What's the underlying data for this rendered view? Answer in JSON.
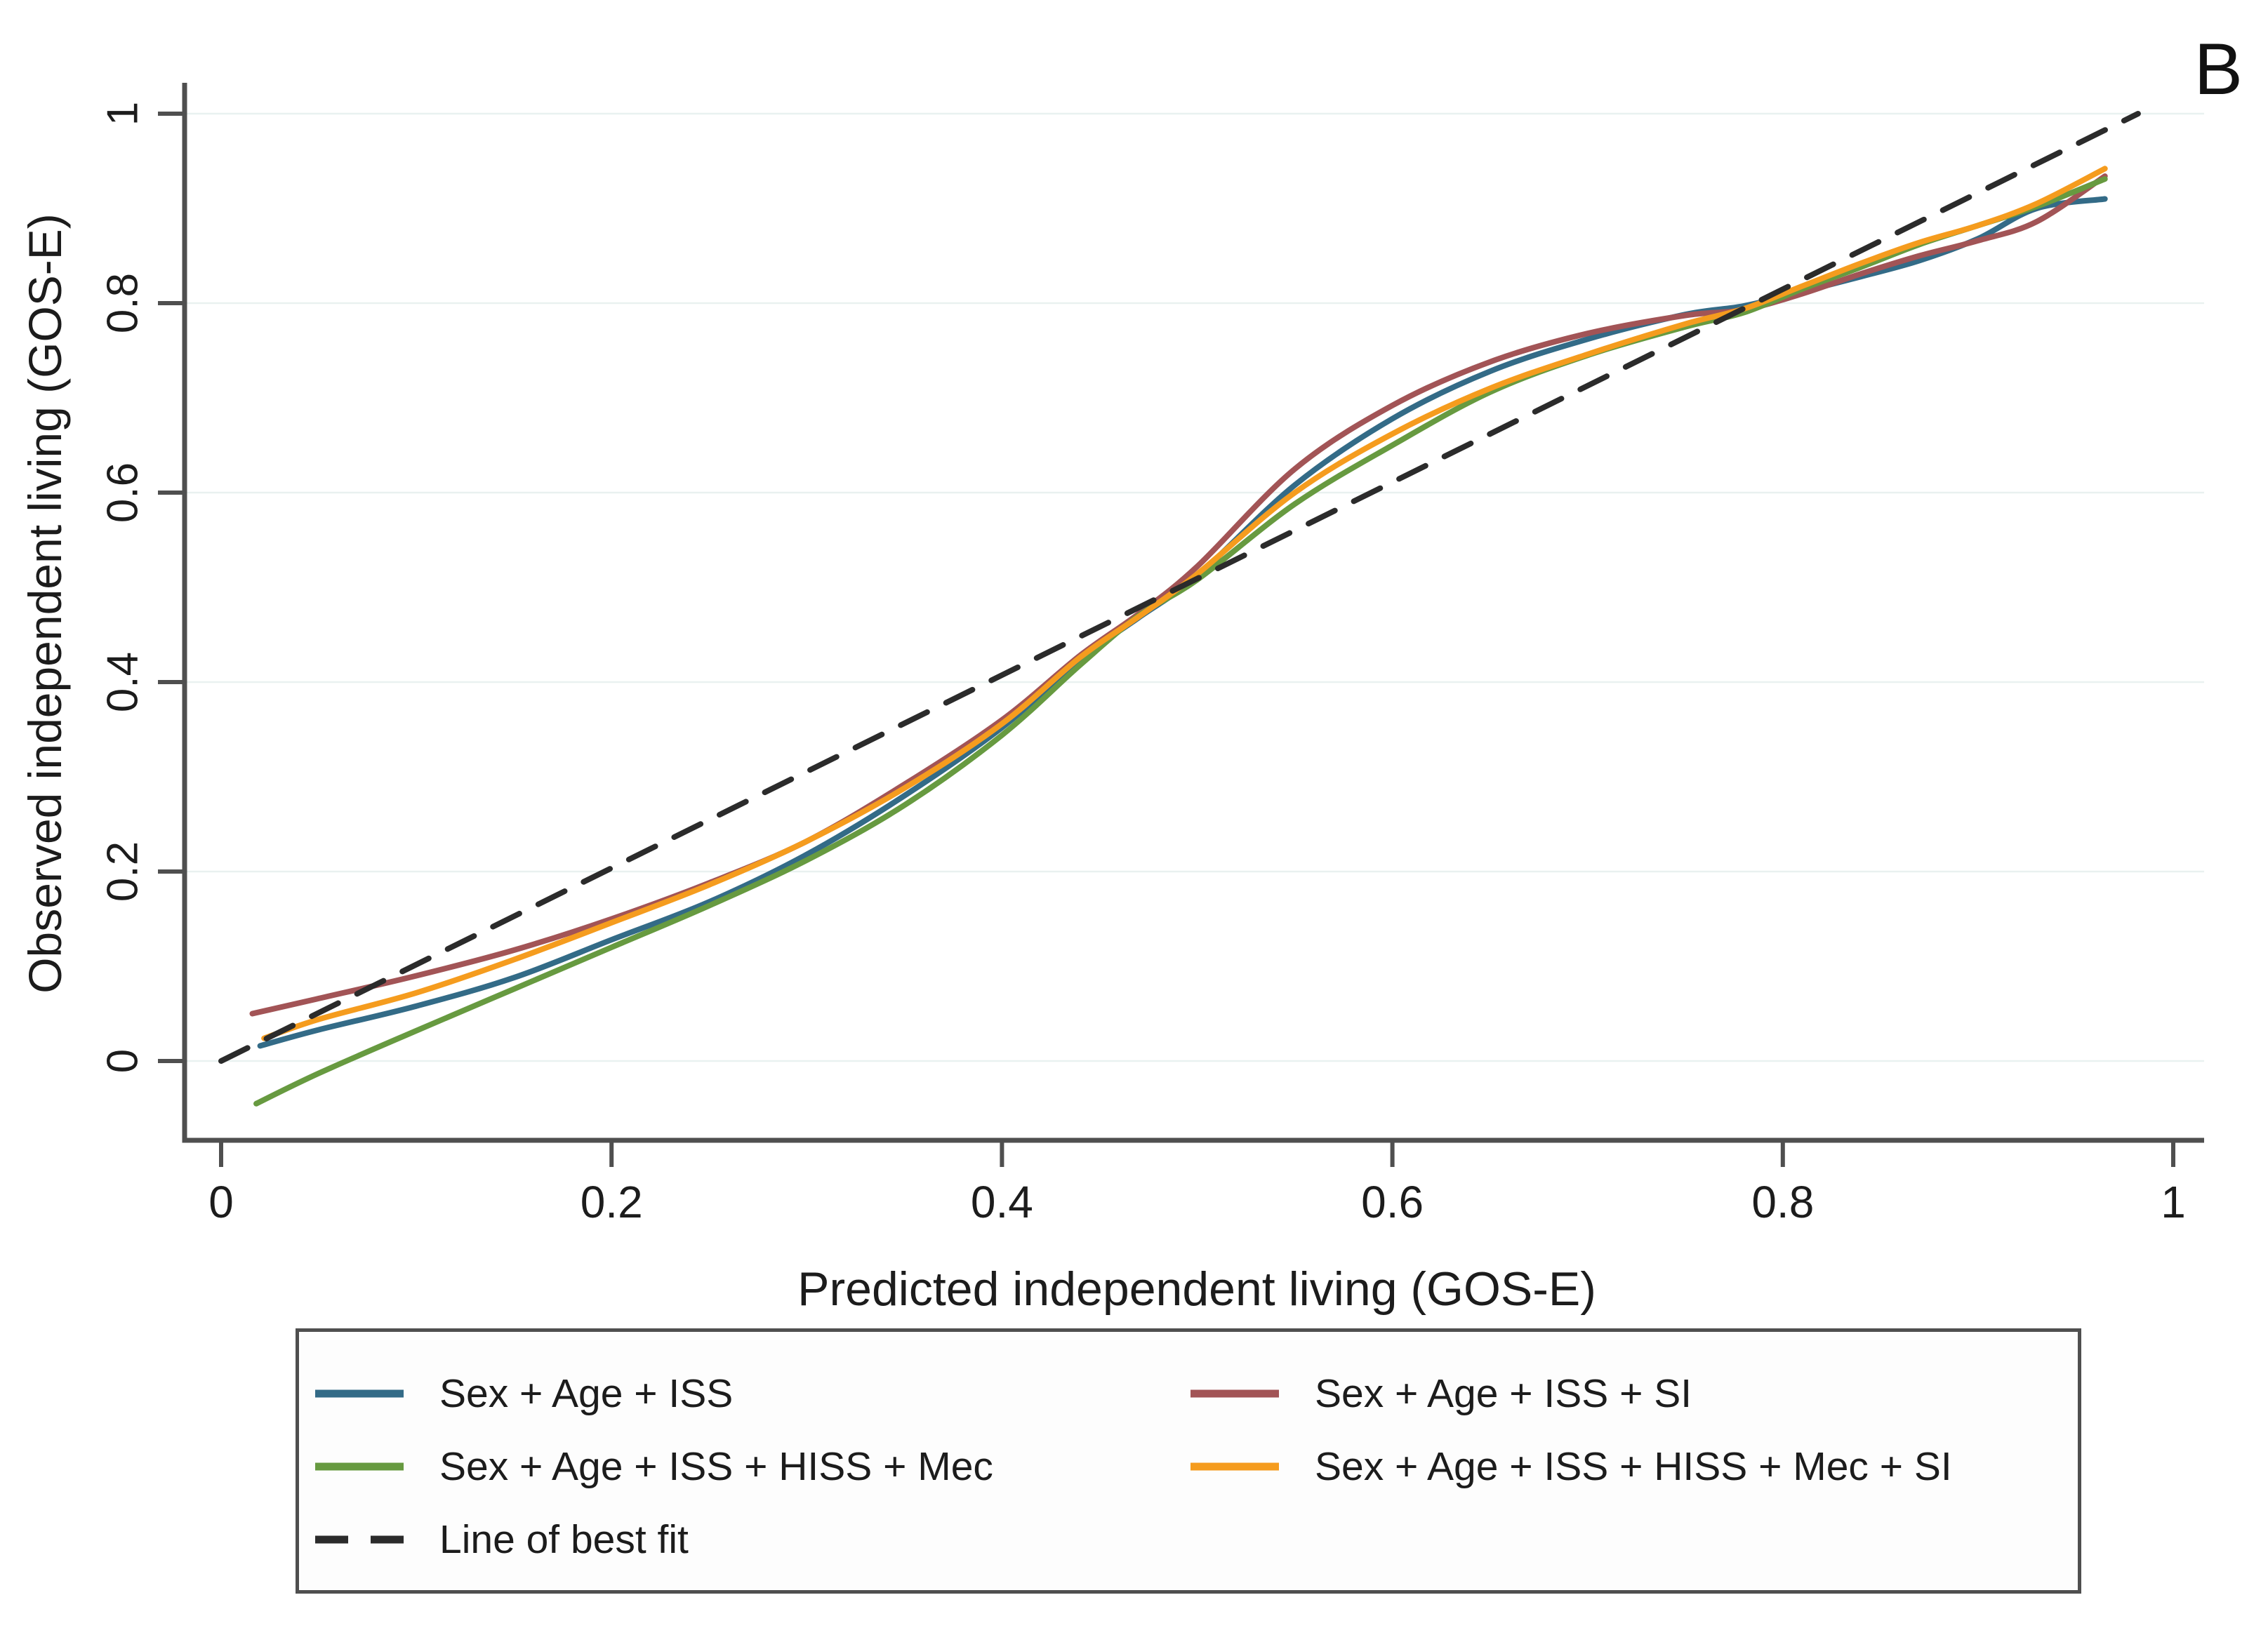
{
  "panel_label": "B",
  "colors": {
    "blue": "#336b87",
    "red": "#a25456",
    "green": "#679a40",
    "orange": "#f59c1e",
    "best_fit": "#2b2b2b",
    "axis": "#4f4f4f",
    "grid": "#e9f1f0",
    "text": "#1c1c1c"
  },
  "axes": {
    "x": {
      "title": "Predicted independent living (GOS-E)",
      "ticks": [
        0,
        0.2,
        0.4,
        0.6,
        0.8,
        1
      ],
      "tick_labels": [
        "0",
        "0.2",
        "0.4",
        "0.6",
        "0.8",
        "1"
      ],
      "range": [
        -0.02,
        1.02
      ]
    },
    "y": {
      "title": "Observed independent living (GOS-E)",
      "ticks": [
        0,
        0.2,
        0.4,
        0.6,
        0.8,
        1
      ],
      "tick_labels": [
        "0",
        "0.2",
        "0.4",
        "0.6",
        "0.8",
        "1"
      ],
      "range": [
        -0.084,
        1.03
      ]
    }
  },
  "chart_data": {
    "type": "line",
    "title": "",
    "xlabel": "Predicted independent living (GOS-E)",
    "ylabel": "Observed independent living (GOS-E)",
    "xlim": [
      -0.02,
      1.02
    ],
    "ylim": [
      -0.084,
      1.03
    ],
    "grid": "horizontal-only",
    "legend_position": "bottom-box",
    "series": [
      {
        "name": "Sex + Age + ISS",
        "color_key": "blue",
        "dash": false,
        "x": [
          0.02,
          0.05,
          0.1,
          0.15,
          0.2,
          0.25,
          0.3,
          0.35,
          0.4,
          0.44,
          0.47,
          0.5,
          0.55,
          0.6,
          0.65,
          0.7,
          0.75,
          0.78,
          0.81,
          0.84,
          0.87,
          0.9,
          0.93,
          0.965
        ],
        "y": [
          0.016,
          0.033,
          0.058,
          0.088,
          0.128,
          0.168,
          0.218,
          0.28,
          0.352,
          0.424,
          0.468,
          0.512,
          0.608,
          0.678,
          0.728,
          0.762,
          0.788,
          0.797,
          0.812,
          0.828,
          0.845,
          0.868,
          0.9,
          0.91
        ]
      },
      {
        "name": "Sex + Age + ISS + SI",
        "color_key": "red",
        "dash": false,
        "x": [
          0.016,
          0.05,
          0.1,
          0.15,
          0.2,
          0.25,
          0.3,
          0.35,
          0.4,
          0.44,
          0.47,
          0.5,
          0.55,
          0.6,
          0.65,
          0.7,
          0.75,
          0.78,
          0.81,
          0.84,
          0.87,
          0.9,
          0.93,
          0.965
        ],
        "y": [
          0.05,
          0.066,
          0.09,
          0.117,
          0.15,
          0.188,
          0.232,
          0.292,
          0.36,
          0.428,
          0.472,
          0.522,
          0.625,
          0.692,
          0.738,
          0.768,
          0.787,
          0.793,
          0.81,
          0.831,
          0.85,
          0.866,
          0.886,
          0.934
        ]
      },
      {
        "name": "Sex + Age + ISS + HISS + Mec",
        "color_key": "green",
        "dash": false,
        "x": [
          0.018,
          0.05,
          0.1,
          0.15,
          0.2,
          0.25,
          0.3,
          0.35,
          0.4,
          0.44,
          0.47,
          0.5,
          0.55,
          0.6,
          0.65,
          0.7,
          0.75,
          0.78,
          0.81,
          0.84,
          0.87,
          0.9,
          0.93,
          0.965
        ],
        "y": [
          -0.045,
          -0.013,
          0.032,
          0.076,
          0.12,
          0.164,
          0.212,
          0.27,
          0.344,
          0.418,
          0.47,
          0.508,
          0.588,
          0.65,
          0.706,
          0.745,
          0.775,
          0.79,
          0.815,
          0.838,
          0.862,
          0.882,
          0.902,
          0.931
        ]
      },
      {
        "name": "Sex + Age + ISS + HISS + Mec + SI",
        "color_key": "orange",
        "dash": false,
        "x": [
          0.022,
          0.05,
          0.1,
          0.15,
          0.2,
          0.25,
          0.3,
          0.35,
          0.4,
          0.44,
          0.47,
          0.5,
          0.55,
          0.6,
          0.65,
          0.7,
          0.75,
          0.78,
          0.81,
          0.84,
          0.87,
          0.9,
          0.93,
          0.965
        ],
        "y": [
          0.024,
          0.044,
          0.072,
          0.107,
          0.146,
          0.186,
          0.232,
          0.288,
          0.356,
          0.426,
          0.469,
          0.514,
          0.6,
          0.662,
          0.71,
          0.746,
          0.778,
          0.794,
          0.818,
          0.842,
          0.864,
          0.882,
          0.905,
          0.942
        ]
      },
      {
        "name": "Line of best fit",
        "color_key": "best_fit",
        "dash": true,
        "x": [
          0.0,
          0.982
        ],
        "y": [
          0.0,
          1.0
        ]
      }
    ]
  },
  "legend": {
    "entries": [
      {
        "label": "Sex + Age + ISS",
        "series_index": 0
      },
      {
        "label": "Sex + Age + ISS + SI",
        "series_index": 1
      },
      {
        "label": "Sex + Age + ISS + HISS + Mec",
        "series_index": 2
      },
      {
        "label": "Sex + Age + ISS + HISS + Mec + SI",
        "series_index": 3
      },
      {
        "label": "Line of best fit",
        "series_index": 4
      }
    ]
  }
}
